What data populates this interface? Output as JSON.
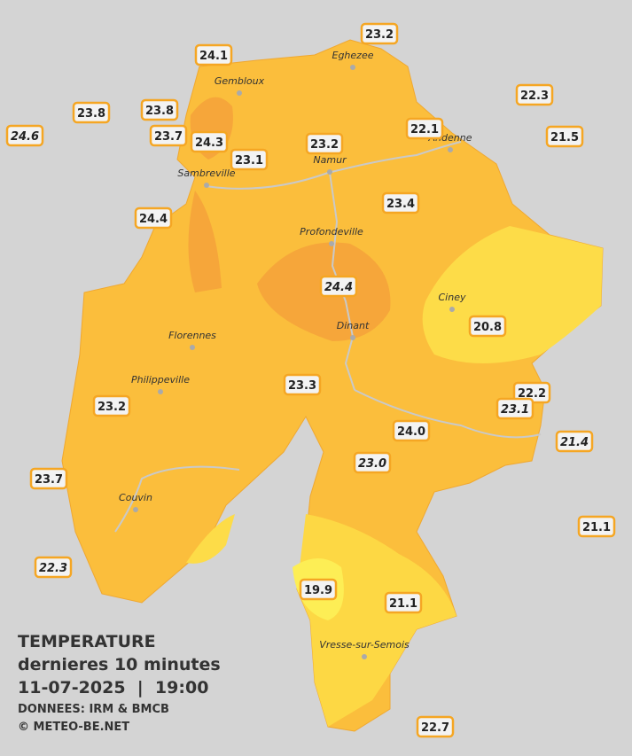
{
  "cities": [
    "Eghezee",
    "Gembloux",
    "Andenne",
    "Namur",
    "Sambreville",
    "Profondeville",
    "Ciney",
    "Florennes",
    "Dinant",
    "Philippeville",
    "Couvin",
    "Vresse-sur-Semois"
  ],
  "stations": [
    "24.1",
    "23.2",
    "22.3",
    "23.8",
    "23.8",
    "24.6",
    "23.7",
    "24.3",
    "22.1",
    "21.5",
    "23.2",
    "23.1",
    "24.4",
    "23.4",
    "24.4",
    "20.8",
    "23.3",
    "22.2",
    "23.1",
    "23.2",
    "24.0",
    "21.4",
    "23.0",
    "23.7",
    "21.1",
    "22.3",
    "19.9",
    "21.1",
    "22.7"
  ],
  "legend": {
    "title": "TEMPERATURE",
    "subtitle": "dernieres 10 minutes",
    "datetime": "11-07-2025  |  19:00",
    "source": "DONNEES: IRM & BMCB",
    "copyright": "© METEO-BE.NET"
  }
}
